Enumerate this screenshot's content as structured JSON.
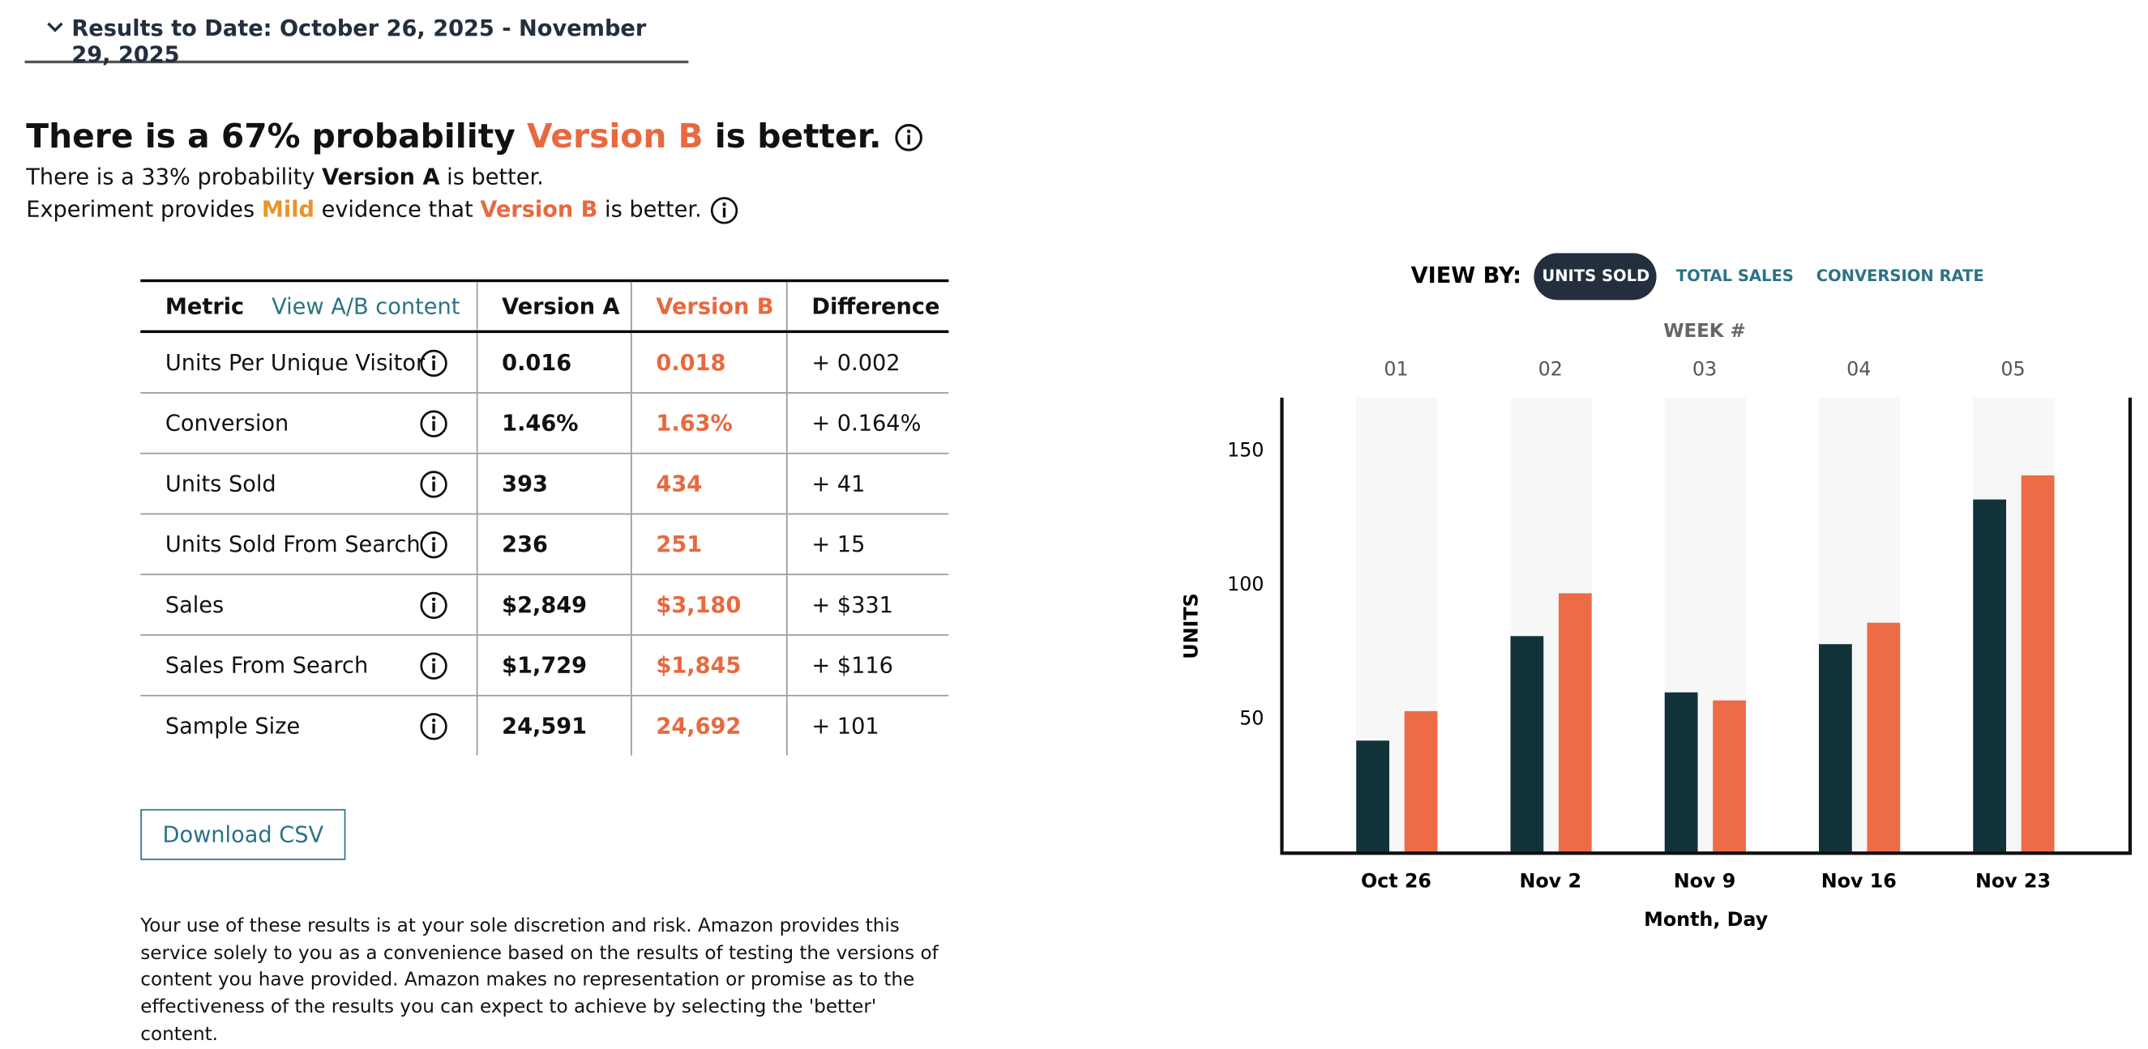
{
  "header": {
    "title": "Results to Date: October 26, 2025 - November 29, 2025"
  },
  "summary": {
    "headline": {
      "prefix": "There is a 67% probability ",
      "highlight": "Version B",
      "suffix": " is better."
    },
    "secondary": {
      "prefix": "There is a 33% probability ",
      "highlight": "Version A",
      "suffix": " is better."
    },
    "evidence": {
      "prefix": "Experiment provides ",
      "level": "Mild",
      "middle": " evidence that ",
      "highlight": "Version B",
      "suffix": " is better."
    }
  },
  "table": {
    "header": [
      "Metric",
      "View A/B content",
      "Version A",
      "Version B",
      "Difference"
    ],
    "rows": [
      [
        "Units Per Unique Visitor",
        "0.016",
        "0.018",
        "+ 0.002"
      ],
      [
        "Conversion",
        "1.46%",
        "1.63%",
        "+ 0.164%"
      ],
      [
        "Units Sold",
        "393",
        "434",
        "+ 41"
      ],
      [
        "Units Sold From Search",
        "236",
        "251",
        "+ 15"
      ],
      [
        "Sales",
        "$2,849",
        "$3,180",
        "+ $331"
      ],
      [
        "Sales From Search",
        "$1,729",
        "$1,845",
        "+ $116"
      ],
      [
        "Sample Size",
        "24,591",
        "24,692",
        "+ 101"
      ]
    ]
  },
  "download": "Download CSV",
  "disclaimer": "Your use of these results is at your sole discretion and risk. Amazon provides this service solely to you as a convenience based on the results of testing the versions of content you have provided. Amazon makes no representation or promise as to the effectiveness of the results you can expect to achieve by selecting the 'better' content.",
  "view_by": {
    "label": "VIEW BY:",
    "options": [
      "UNITS SOLD",
      "TOTAL SALES",
      "CONVERSION RATE"
    ]
  },
  "chart_data": {
    "type": "bar",
    "week_title": "WEEK #",
    "week_labels": [
      "01",
      "02",
      "03",
      "04",
      "05"
    ],
    "categories": [
      "Oct 26",
      "Nov 2",
      "Nov 9",
      "Nov 16",
      "Nov 23"
    ],
    "x_label": "Month, Day",
    "y_label": "UNITS",
    "series": [
      {
        "color": "#12323a",
        "values": [
          42,
          81,
          60,
          78,
          132
        ]
      },
      {
        "color": "#ee6b47",
        "values": [
          53,
          97,
          57,
          86,
          141
        ]
      }
    ],
    "ylim": [
      0,
      170
    ],
    "yticks": [
      50,
      100,
      150
    ]
  }
}
